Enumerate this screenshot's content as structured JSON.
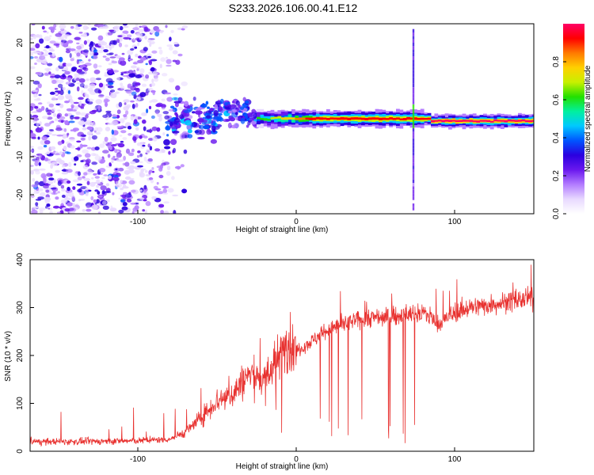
{
  "title": "S233.2026.106.00.41.E12",
  "colors": {
    "snr_line": "#e8312f",
    "colormap": [
      "#e8d9ff",
      "#b37cff",
      "#6a18ee",
      "#2b00e0",
      "#0055ff",
      "#00c8ff",
      "#00f0a0",
      "#22e000",
      "#c8f000",
      "#ffd000",
      "#ff7a00",
      "#ff0000",
      "#ff0066"
    ]
  },
  "chart_data": [
    {
      "type": "heatmap",
      "name": "spectrogram",
      "xlabel": "Height of straight line (km)",
      "ylabel": "Frequency (Hz)",
      "xlim": [
        -168,
        150
      ],
      "ylim": [
        -25,
        25
      ],
      "xticks": [
        -100,
        0,
        100
      ],
      "xtick_labels": [
        "-100",
        "0",
        "100"
      ],
      "yticks": [
        -20,
        -10,
        0,
        10,
        20
      ],
      "ytick_labels": [
        "-20",
        "-10",
        "0",
        "10",
        "20"
      ],
      "colorbar": {
        "label": "Normalized spectral amplitude",
        "range": [
          0.0,
          1.0
        ],
        "ticks": [
          0.0,
          0.2,
          0.4,
          0.6,
          0.8
        ],
        "tick_labels": [
          "0.0",
          "0.2",
          "0.4",
          "0.6",
          "0.8"
        ]
      },
      "noise_region_x": [
        -168,
        -80
      ],
      "carrier_freq_hz": 0,
      "vertical_streak_x": 74
    },
    {
      "type": "line",
      "name": "snr",
      "xlabel": "Height of straight line (km)",
      "ylabel": "SNR (10 * v/v)",
      "xlim": [
        -168,
        150
      ],
      "ylim": [
        0,
        400
      ],
      "xticks": [
        -100,
        0,
        100
      ],
      "xtick_labels": [
        "-100",
        "0",
        "100"
      ],
      "yticks": [
        0,
        100,
        200,
        300,
        400
      ],
      "ytick_labels": [
        "0",
        "100",
        "200",
        "300",
        "400"
      ],
      "series": [
        {
          "name": "SNR",
          "x": [
            -168,
            -140,
            -100,
            -80,
            -70,
            -60,
            -50,
            -40,
            -30,
            -20,
            -10,
            -5,
            0,
            10,
            20,
            30,
            40,
            50,
            60,
            70,
            80,
            85,
            90,
            100,
            110,
            120,
            130,
            140,
            150
          ],
          "y": [
            20,
            20,
            22,
            25,
            40,
            70,
            105,
            120,
            160,
            150,
            200,
            225,
            210,
            230,
            255,
            265,
            275,
            280,
            280,
            285,
            290,
            280,
            265,
            290,
            300,
            305,
            310,
            315,
            320
          ]
        }
      ]
    }
  ]
}
